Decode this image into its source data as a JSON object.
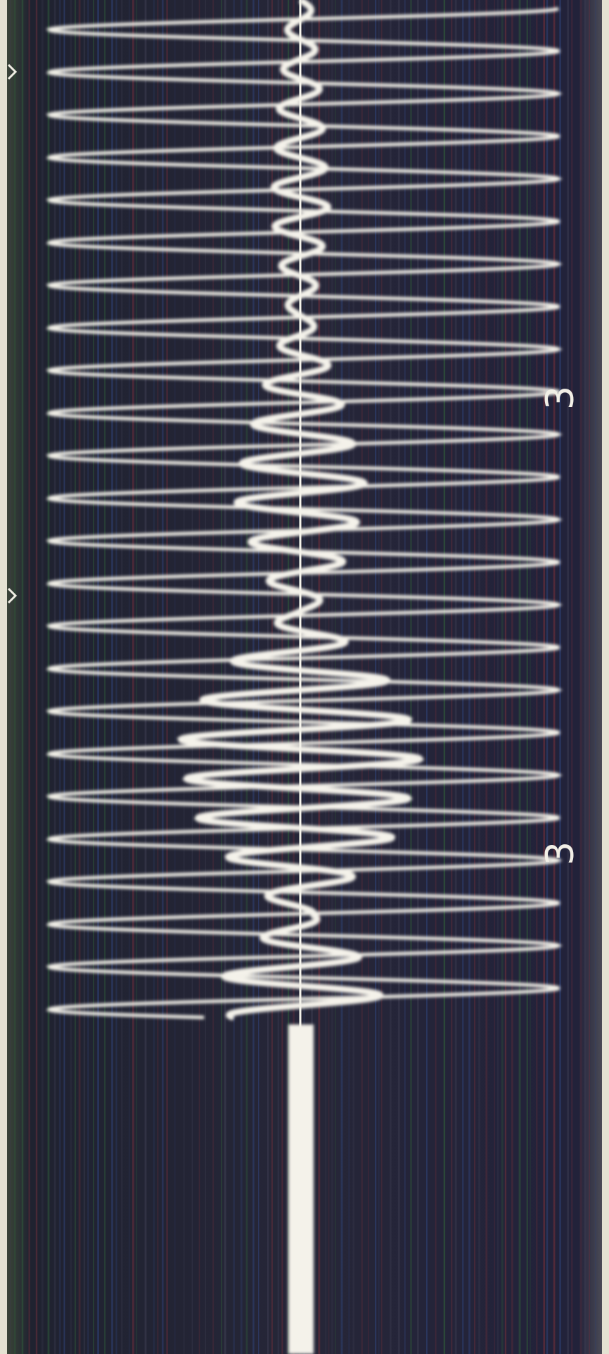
{
  "annotations": {
    "labels": [
      "3",
      "3"
    ]
  }
}
